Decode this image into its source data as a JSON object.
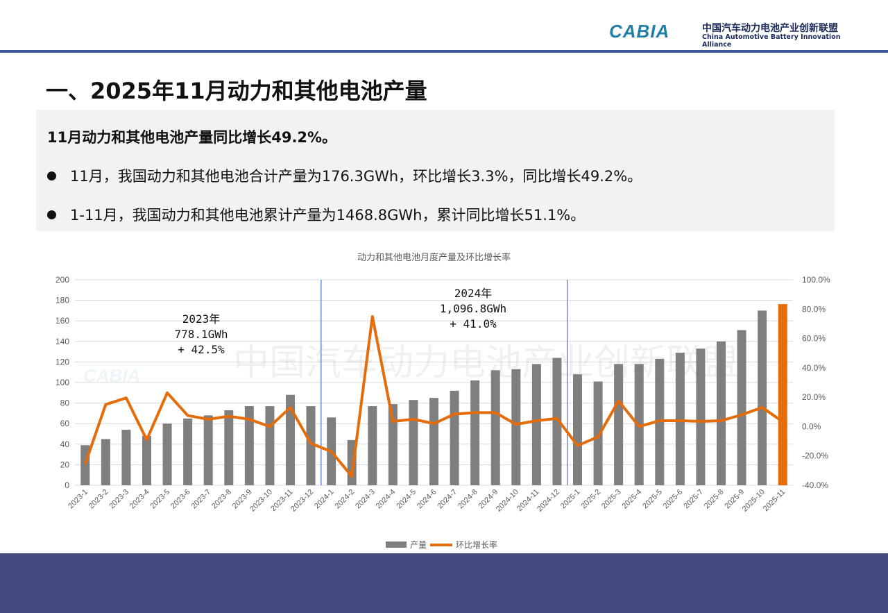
{
  "header": {
    "logo_text": "CABIA",
    "org_cn": "中国汽车动力电池产业创新联盟",
    "org_en": "China Automotive Battery Innovation Alliance"
  },
  "page_title": "一、2025年11月动力和其他电池产量",
  "summary": {
    "headline": "11月动力和其他电池产量同比增长49.2%。",
    "bullets": [
      "11月，我国动力和其他电池合计产量为176.3GWh，环比增长3.3%，同比增长49.2%。",
      "1-11月，我国动力和其他电池累计产量为1468.8GWh，累计同比增长51.1%。"
    ]
  },
  "watermark": "中国汽车动力电池产业创新联盟",
  "colors": {
    "bar": "#7f7f7f",
    "highlight_bar": "#e46c0a",
    "line": "#e46c0a",
    "divider": "#4472c4",
    "footer": "#434a7e"
  },
  "chart_data": {
    "type": "bar+line",
    "title": "动力和其他电池月度产量及环比增长率",
    "categories": [
      "2023-1",
      "2023-2",
      "2023-3",
      "2023-4",
      "2023-5",
      "2023-6",
      "2023-7",
      "2023-8",
      "2023-9",
      "2023-10",
      "2023-11",
      "2023-12",
      "2024-1",
      "2024-2",
      "2024-3",
      "2024-4",
      "2024-5",
      "2024-6",
      "2024-7",
      "2024-8",
      "2024-9",
      "2024-10",
      "2024-11",
      "2024-12",
      "2025-1",
      "2025-2",
      "2025-3",
      "2025-4",
      "2025-5",
      "2025-6",
      "2025-7",
      "2025-8",
      "2025-9",
      "2025-10",
      "2025-11"
    ],
    "series": [
      {
        "name": "产量",
        "type": "bar",
        "axis": "left",
        "values": [
          39,
          45,
          54,
          48,
          60,
          65,
          68,
          73,
          77,
          77,
          88,
          77,
          66,
          44,
          77,
          79,
          83,
          85,
          92,
          102,
          112,
          113,
          118,
          124,
          108,
          101,
          118,
          118,
          123,
          129,
          133,
          140,
          151,
          170,
          176.3
        ]
      },
      {
        "name": "环比增长率",
        "type": "line",
        "axis": "right",
        "values": [
          -25.5,
          15,
          19.5,
          -9,
          23,
          7.5,
          5,
          7,
          5,
          0,
          13,
          -11.5,
          -17,
          -34,
          75,
          3.5,
          5,
          2,
          8.5,
          9.5,
          9.5,
          1.5,
          4,
          5.5,
          -13,
          -7,
          17.5,
          0,
          4,
          4,
          3.5,
          4,
          8,
          13,
          3.3
        ]
      }
    ],
    "y_left": {
      "ylim": [
        0,
        200
      ],
      "ticks": [
        "0",
        "20",
        "40",
        "60",
        "80",
        "100",
        "120",
        "140",
        "160",
        "180",
        "200"
      ]
    },
    "y_right": {
      "ylim": [
        -40,
        100
      ],
      "ticks": [
        "-40.0%",
        "-20.0%",
        "0.0%",
        "20.0%",
        "40.0%",
        "60.0%",
        "80.0%",
        "100.0%"
      ]
    },
    "grid": true,
    "legend": "bottom",
    "annotations": [
      {
        "lines": [
          "2023年",
          "778.1GWh",
          "+ 42.5%"
        ]
      },
      {
        "lines": [
          "2024年",
          "1,096.8GWh",
          "+ 41.0%"
        ]
      }
    ]
  }
}
